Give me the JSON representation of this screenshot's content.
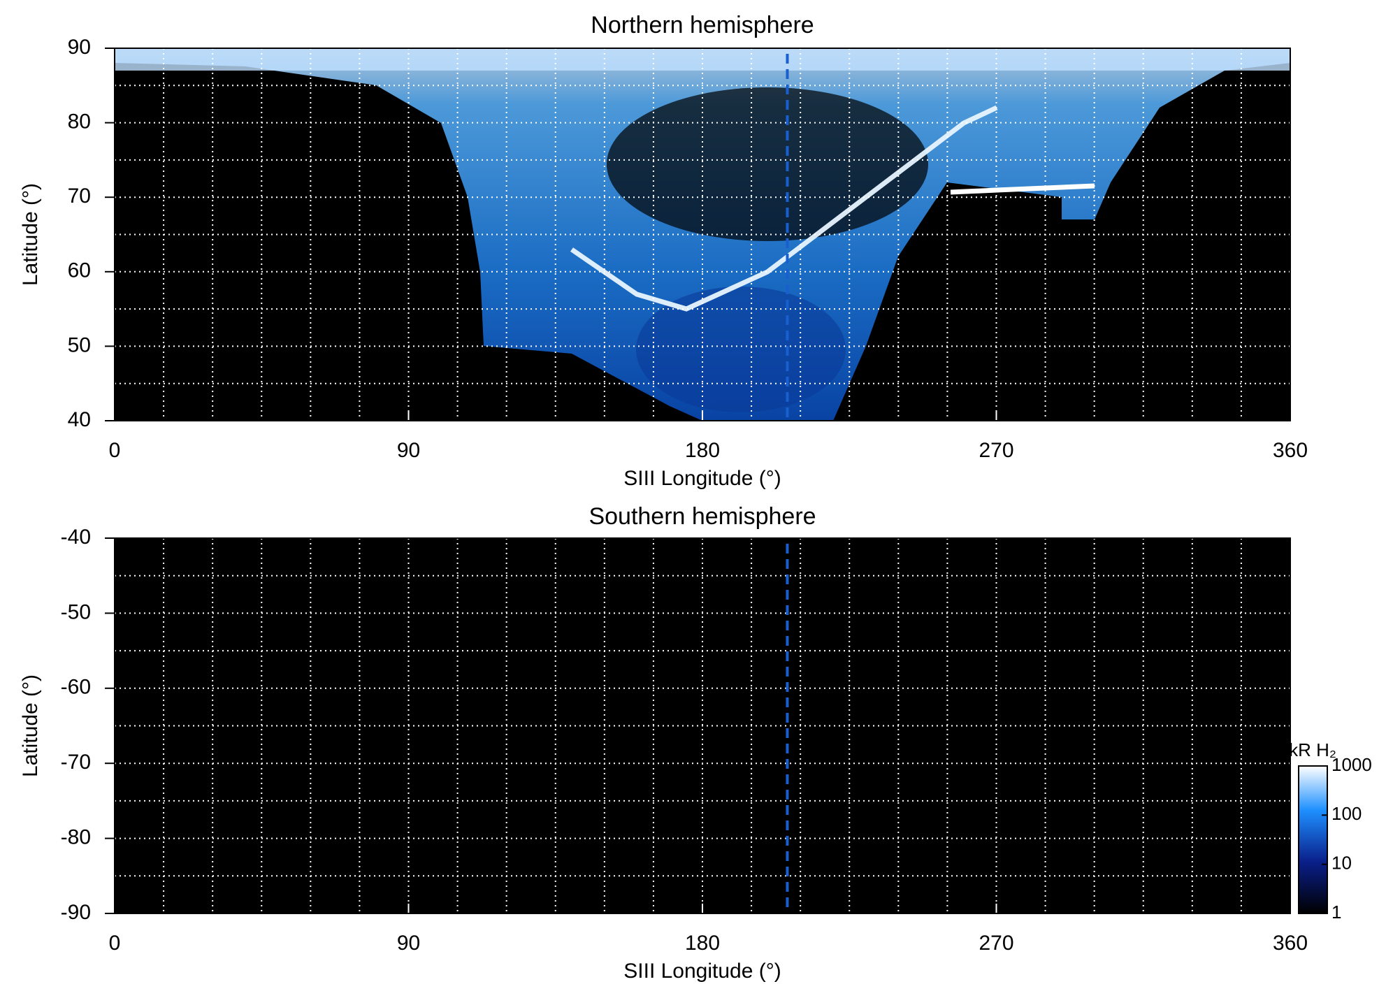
{
  "chart_data": [
    {
      "type": "heatmap",
      "title": "Northern hemisphere",
      "x_label": "SIII Longitude (°)",
      "y_label": "Latitude (°)",
      "xlim": [
        0,
        360
      ],
      "xticks": [
        0,
        90,
        180,
        270,
        360
      ],
      "xgrid": [
        15,
        30,
        45,
        60,
        75,
        90,
        105,
        120,
        135,
        150,
        165,
        180,
        195,
        210,
        225,
        240,
        255,
        270,
        285,
        300,
        315,
        330,
        345
      ],
      "ylim": [
        40,
        90
      ],
      "yticks": [
        40,
        50,
        60,
        70,
        80,
        90
      ],
      "ygrid": [
        45,
        50,
        55,
        60,
        65,
        70,
        75,
        80,
        85
      ],
      "reference_longitude": 206,
      "grid": true
    },
    {
      "type": "heatmap",
      "title": "Southern hemisphere",
      "x_label": "SIII Longitude (°)",
      "y_label": "Latitude (°)",
      "xlim": [
        0,
        360
      ],
      "xticks": [
        0,
        90,
        180,
        270,
        360
      ],
      "xgrid": [
        15,
        30,
        45,
        60,
        75,
        90,
        105,
        120,
        135,
        150,
        165,
        180,
        195,
        210,
        225,
        240,
        255,
        270,
        285,
        300,
        315,
        330,
        345
      ],
      "ylim": [
        -90,
        -40
      ],
      "yticks": [
        -40,
        -50,
        -60,
        -70,
        -80,
        -90
      ],
      "ygrid": [
        -45,
        -50,
        -55,
        -60,
        -65,
        -70,
        -75,
        -80,
        -85
      ],
      "reference_longitude": 206,
      "grid": true,
      "colorbar": {
        "label": "kR H₂",
        "lim": [
          1,
          1000
        ],
        "ticks": [
          1,
          10,
          100,
          1000
        ],
        "log": true
      }
    }
  ]
}
